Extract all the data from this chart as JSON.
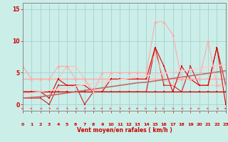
{
  "xlabel": "Vent moyen/en rafales ( km/h )",
  "xlim": [
    0,
    23
  ],
  "ylim": [
    -1,
    16
  ],
  "yticks": [
    0,
    5,
    10,
    15
  ],
  "xticks": [
    0,
    1,
    2,
    3,
    4,
    5,
    6,
    7,
    8,
    9,
    10,
    11,
    12,
    13,
    14,
    15,
    16,
    17,
    18,
    19,
    20,
    21,
    22,
    23
  ],
  "bg_color": "#cceee8",
  "grid_color": "#99cccc",
  "lines": [
    {
      "y": [
        2,
        2,
        2,
        2,
        2,
        2,
        2,
        2,
        2,
        2,
        2,
        2,
        2,
        2,
        2,
        2,
        2,
        2,
        2,
        2,
        2,
        2,
        2,
        2
      ],
      "color": "#cc0000",
      "lw": 1.0,
      "marker": "s",
      "ms": 2.0
    },
    {
      "y": [
        4,
        4,
        4,
        4,
        4,
        4,
        4,
        4,
        4,
        4,
        4,
        4,
        4,
        4,
        4,
        4,
        4,
        4,
        4,
        4,
        4,
        4,
        4,
        4
      ],
      "color": "#ffaaaa",
      "lw": 1.0,
      "marker": "s",
      "ms": 2.0
    },
    {
      "y": [
        1,
        1,
        1,
        0,
        3,
        3,
        3,
        0,
        2,
        2,
        2,
        2,
        2,
        2,
        2,
        9,
        3,
        3,
        2,
        6,
        3,
        3,
        9,
        3
      ],
      "color": "#cc2222",
      "lw": 0.8,
      "marker": "s",
      "ms": 2.0
    },
    {
      "y": [
        6,
        4,
        4,
        4,
        4,
        6,
        6,
        4,
        2,
        2,
        5,
        5,
        5,
        5,
        5,
        8,
        4,
        3,
        4,
        4,
        3,
        3,
        3,
        3
      ],
      "color": "#ffbbbb",
      "lw": 0.8,
      "marker": "s",
      "ms": 2.0
    },
    {
      "y": [
        2,
        2,
        2,
        1,
        4,
        3,
        3,
        3,
        2,
        2,
        4,
        4,
        4,
        4,
        4,
        9,
        6,
        2,
        6,
        4,
        3,
        3,
        9,
        0
      ],
      "color": "#dd0000",
      "lw": 0.8,
      "marker": "s",
      "ms": 2.0
    },
    {
      "y": [
        1.5,
        1.8,
        2.0,
        2.2,
        2.4,
        2.6,
        2.9,
        3.1,
        3.3,
        3.5,
        3.7,
        3.9,
        4.1,
        4.3,
        4.5,
        4.7,
        4.9,
        5.1,
        5.3,
        5.5,
        5.7,
        5.9,
        6.1,
        6.3
      ],
      "color": "#ffcccc",
      "lw": 1.2,
      "marker": null,
      "ms": 0
    },
    {
      "y": [
        1.0,
        1.1,
        1.2,
        1.4,
        1.6,
        1.8,
        2.0,
        2.2,
        2.4,
        2.6,
        2.8,
        3.0,
        3.2,
        3.4,
        3.5,
        3.7,
        3.9,
        4.1,
        4.3,
        4.5,
        4.7,
        4.9,
        5.1,
        5.3
      ],
      "color": "#cc6666",
      "lw": 1.2,
      "marker": null,
      "ms": 0
    },
    {
      "y": [
        6,
        4,
        4,
        4,
        6,
        6,
        4,
        4,
        2,
        5,
        5,
        5,
        5,
        5,
        5,
        13,
        13,
        11,
        4,
        4,
        4,
        10,
        3,
        3
      ],
      "color": "#ffaaaa",
      "lw": 0.8,
      "marker": "^",
      "ms": 3
    }
  ],
  "wind_dirs": [
    225,
    315,
    270,
    45,
    90,
    45,
    270,
    45,
    270,
    315,
    90,
    45,
    270,
    315,
    90,
    270,
    90,
    45,
    270,
    45,
    90,
    315,
    270,
    315
  ]
}
